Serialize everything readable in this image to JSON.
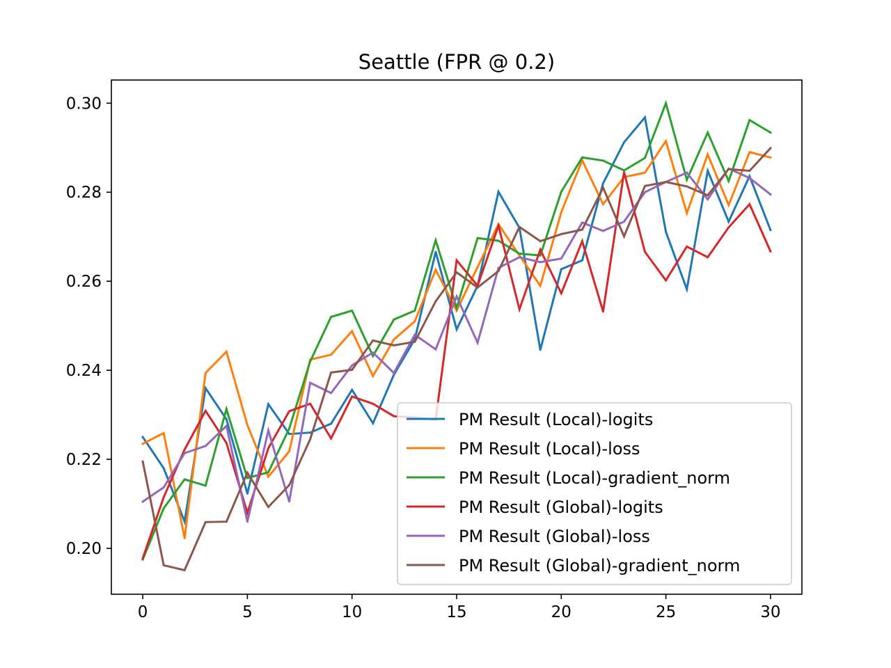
{
  "chart_data": {
    "type": "line",
    "title": "Seattle (FPR @ 0.2)",
    "xlabel": "",
    "ylabel": "",
    "xlim": [
      -1.5,
      31.5
    ],
    "ylim": [
      0.1897,
      0.3052
    ],
    "xticks": [
      0,
      5,
      10,
      15,
      20,
      25,
      30
    ],
    "yticks": [
      0.2,
      0.22,
      0.24,
      0.26,
      0.28,
      0.3
    ],
    "xtick_labels": [
      "0",
      "5",
      "10",
      "15",
      "20",
      "25",
      "30"
    ],
    "ytick_labels": [
      "0.20",
      "0.22",
      "0.24",
      "0.26",
      "0.28",
      "0.30"
    ],
    "grid": false,
    "legend_position": "lower right",
    "x": [
      0,
      1,
      2,
      3,
      4,
      5,
      6,
      7,
      8,
      9,
      10,
      11,
      12,
      13,
      14,
      15,
      16,
      17,
      18,
      19,
      20,
      21,
      22,
      23,
      24,
      25,
      26,
      27,
      28,
      29,
      30
    ],
    "series": [
      {
        "name": "PM Result (Local)-logits",
        "color": "#1f77b4",
        "values": [
          0.225,
          0.218,
          0.206,
          0.236,
          0.229,
          0.2123,
          0.2324,
          0.2257,
          0.226,
          0.228,
          0.2356,
          0.2281,
          0.239,
          0.247,
          0.2666,
          0.2492,
          0.259,
          0.2801,
          0.272,
          0.2446,
          0.2627,
          0.2647,
          0.282,
          0.2912,
          0.2968,
          0.2711,
          0.2582,
          0.2848,
          0.2734,
          0.2836,
          0.2715
        ]
      },
      {
        "name": "PM Result (Local)-loss",
        "color": "#ff7f0e",
        "values": [
          0.2235,
          0.2259,
          0.2023,
          0.2394,
          0.2442,
          0.2277,
          0.2161,
          0.2218,
          0.2424,
          0.2435,
          0.2488,
          0.2387,
          0.2469,
          0.251,
          0.2626,
          0.2534,
          0.2632,
          0.2728,
          0.2658,
          0.259,
          0.2755,
          0.2872,
          0.2773,
          0.2834,
          0.2844,
          0.2915,
          0.2753,
          0.2885,
          0.2771,
          0.289,
          0.2878
        ]
      },
      {
        "name": "PM Result (Local)-gradient_norm",
        "color": "#2ca02c",
        "values": [
          0.1975,
          0.209,
          0.2155,
          0.2141,
          0.2313,
          0.2158,
          0.2171,
          0.2269,
          0.242,
          0.252,
          0.2534,
          0.2432,
          0.2514,
          0.2534,
          0.2692,
          0.254,
          0.2697,
          0.2691,
          0.2662,
          0.2658,
          0.2801,
          0.2878,
          0.2871,
          0.2849,
          0.2877,
          0.3,
          0.2828,
          0.2934,
          0.2825,
          0.2962,
          0.2934
        ]
      },
      {
        "name": "PM Result (Global)-logits",
        "color": "#d62728",
        "values": [
          0.1978,
          0.2115,
          0.2222,
          0.2309,
          0.2237,
          0.208,
          0.2225,
          0.2308,
          0.2325,
          0.2247,
          0.2341,
          0.2325,
          0.2297,
          0.2294,
          0.2289,
          0.2647,
          0.259,
          0.2725,
          0.2537,
          0.2671,
          0.2573,
          0.269,
          0.2532,
          0.2845,
          0.2666,
          0.2602,
          0.2678,
          0.2654,
          0.2721,
          0.2773,
          0.2667
        ]
      },
      {
        "name": "PM Result (Global)-loss",
        "color": "#9467bd",
        "values": [
          0.2105,
          0.2137,
          0.2214,
          0.223,
          0.2275,
          0.206,
          0.2265,
          0.2105,
          0.2372,
          0.2349,
          0.2411,
          0.244,
          0.2394,
          0.248,
          0.2447,
          0.2566,
          0.2462,
          0.263,
          0.2654,
          0.2643,
          0.2651,
          0.2732,
          0.2713,
          0.2734,
          0.28,
          0.2823,
          0.2844,
          0.2784,
          0.2853,
          0.2832,
          0.2795
        ]
      },
      {
        "name": "PM Result (Global)-gradient_norm",
        "color": "#8c564b",
        "values": [
          0.2195,
          0.1962,
          0.1951,
          0.2059,
          0.206,
          0.217,
          0.2093,
          0.2142,
          0.2245,
          0.2395,
          0.2401,
          0.2467,
          0.2456,
          0.2464,
          0.2555,
          0.262,
          0.2586,
          0.2623,
          0.2722,
          0.269,
          0.2706,
          0.2716,
          0.281,
          0.2701,
          0.2814,
          0.2823,
          0.2813,
          0.2793,
          0.2852,
          0.2848,
          0.2899
        ]
      }
    ]
  }
}
